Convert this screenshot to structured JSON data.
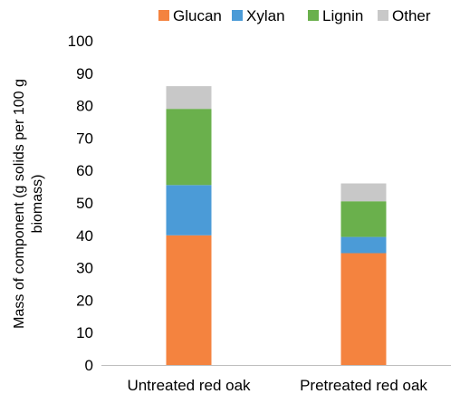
{
  "chart_data": {
    "type": "bar",
    "stacked": true,
    "categories": [
      "Untreated red oak",
      "Pretreated red oak"
    ],
    "series": [
      {
        "name": "Glucan",
        "values": [
          40,
          34.5
        ]
      },
      {
        "name": "Xylan",
        "values": [
          15.5,
          5
        ]
      },
      {
        "name": "Lignin",
        "values": [
          23.5,
          11
        ]
      },
      {
        "name": "Other",
        "values": [
          7,
          5.5
        ]
      }
    ],
    "colors": [
      "#f4833f",
      "#4b9bd7",
      "#6ab04c",
      "#c8c8c8"
    ],
    "ylabel_lines": [
      "Mass of component (g solids per 100 g",
      "biomass)"
    ],
    "xlabel": "",
    "title": "",
    "ylim": [
      0,
      100
    ],
    "yticks": [
      0,
      10,
      20,
      30,
      40,
      50,
      60,
      70,
      80,
      90,
      100
    ],
    "grid": false,
    "legend_position": "top"
  }
}
